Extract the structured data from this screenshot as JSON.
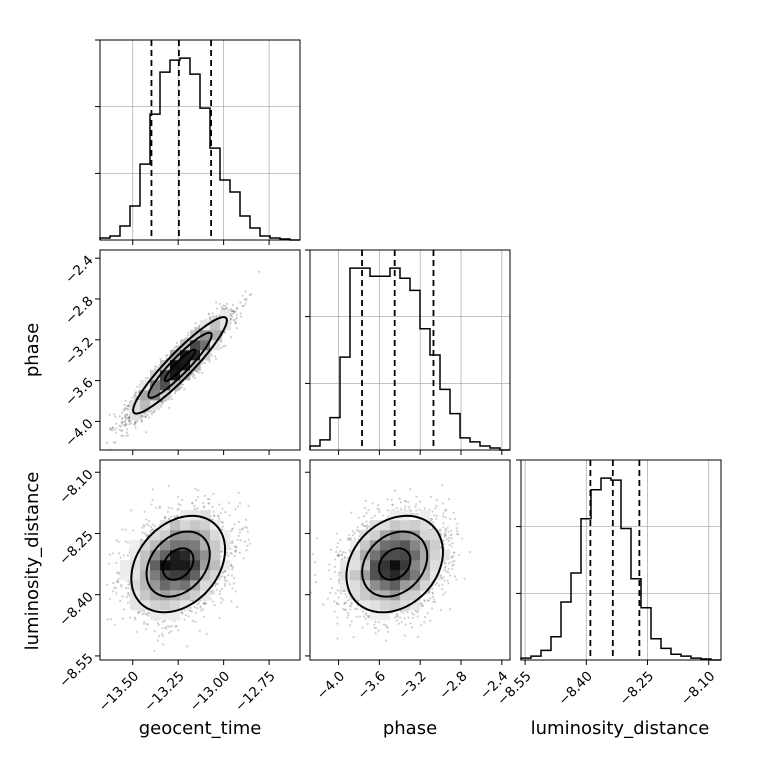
{
  "chart_data": {
    "type": "corner",
    "parameters": [
      {
        "key": "geocent_time",
        "label": "geocent_time",
        "range": [
          -13.68,
          -12.58
        ],
        "ticks": [
          -13.5,
          -13.25,
          -13.0,
          -12.75
        ],
        "tick_labels": [
          "−13.50",
          "−13.25",
          "−13.00",
          "−12.75"
        ],
        "quantiles": [
          -13.397,
          -13.246,
          -13.069
        ],
        "histogram": {
          "bin_edges": [
            -13.68,
            -13.625,
            -13.57,
            -13.515,
            -13.46,
            -13.405,
            -13.35,
            -13.295,
            -13.24,
            -13.185,
            -13.13,
            -13.075,
            -13.02,
            -12.965,
            -12.91,
            -12.855,
            -12.8,
            -12.745,
            -12.69,
            -12.635,
            -12.58
          ],
          "counts": [
            0.01,
            0.02,
            0.07,
            0.17,
            0.38,
            0.63,
            0.84,
            0.9,
            0.91,
            0.83,
            0.66,
            0.46,
            0.3,
            0.24,
            0.12,
            0.06,
            0.02,
            0.01,
            0.005,
            0
          ]
        }
      },
      {
        "key": "phase",
        "label": "phase",
        "range": [
          -4.28,
          -2.32
        ],
        "ticks": [
          -4.0,
          -3.6,
          -3.2,
          -2.8,
          -2.4
        ],
        "tick_labels": [
          "−4.0",
          "−3.6",
          "−3.2",
          "−2.8",
          "−2.4"
        ],
        "quantiles": [
          -3.77,
          -3.45,
          -3.07
        ],
        "histogram": {
          "bin_edges": [
            -4.28,
            -4.182,
            -4.084,
            -3.986,
            -3.888,
            -3.79,
            -3.692,
            -3.594,
            -3.496,
            -3.398,
            -3.3,
            -3.202,
            -3.104,
            -3.006,
            -2.908,
            -2.81,
            -2.712,
            -2.614,
            -2.516,
            -2.418,
            -2.32
          ],
          "counts": [
            0.02,
            0.05,
            0.16,
            0.46,
            0.9,
            0.9,
            0.86,
            0.86,
            0.9,
            0.85,
            0.79,
            0.6,
            0.47,
            0.3,
            0.18,
            0.06,
            0.04,
            0.02,
            0.01,
            0
          ]
        }
      },
      {
        "key": "luminosity_distance",
        "label": "luminosity_distance",
        "range": [
          -8.56,
          -8.07
        ],
        "ticks": [
          -8.55,
          -8.4,
          -8.25,
          -8.1
        ],
        "tick_labels": [
          "−8.55",
          "−8.40",
          "−8.25",
          "−8.10"
        ],
        "quantiles": [
          -8.39,
          -8.335,
          -8.27
        ],
        "histogram": {
          "bin_edges": [
            -8.56,
            -8.5355,
            -8.511,
            -8.4865,
            -8.462,
            -8.4375,
            -8.413,
            -8.3885,
            -8.364,
            -8.3395,
            -8.315,
            -8.2905,
            -8.266,
            -8.2415,
            -8.217,
            -8.1925,
            -8.168,
            -8.1435,
            -8.119,
            -8.0945,
            -8.07
          ],
          "counts": [
            0.01,
            0.02,
            0.05,
            0.12,
            0.3,
            0.45,
            0.73,
            0.88,
            0.94,
            0.93,
            0.68,
            0.42,
            0.27,
            0.11,
            0.06,
            0.03,
            0.02,
            0.01,
            0.005,
            0
          ]
        }
      }
    ],
    "pairs": [
      {
        "x": "geocent_time",
        "y": "phase",
        "mean": [
          -13.24,
          -3.45
        ],
        "sd": [
          0.12,
          0.22
        ],
        "correlation": 0.93,
        "contours": [
          "1 sigma",
          "2 sigma",
          "3 sigma"
        ]
      },
      {
        "x": "geocent_time",
        "y": "luminosity_distance",
        "mean": [
          -13.25,
          -8.325
        ],
        "sd": [
          0.12,
          0.055
        ],
        "correlation": 0.3,
        "contours": [
          "1 sigma",
          "2 sigma",
          "3 sigma"
        ]
      },
      {
        "x": "phase",
        "y": "luminosity_distance",
        "mean": [
          -3.45,
          -8.325
        ],
        "sd": [
          0.22,
          0.055
        ],
        "correlation": 0.25,
        "contours": [
          "1 sigma",
          "2 sigma",
          "3 sigma"
        ]
      }
    ],
    "grid": true,
    "histogram_y_ticks": "unlabeled"
  }
}
